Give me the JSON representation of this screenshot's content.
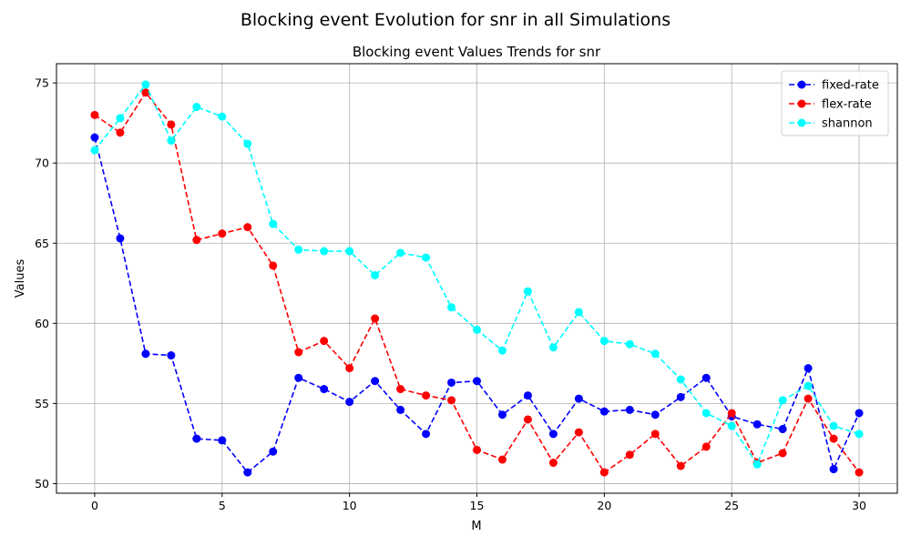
{
  "figure": {
    "suptitle": "Blocking event Evolution for snr in all Simulations"
  },
  "chart_data": {
    "type": "line",
    "title": "Blocking event Values Trends for snr",
    "xlabel": "M",
    "ylabel": "Values",
    "xlim": [
      -1.5,
      31.5
    ],
    "ylim": [
      49.4,
      76.2
    ],
    "xticks": [
      0,
      5,
      10,
      15,
      20,
      25,
      30
    ],
    "yticks": [
      50,
      55,
      60,
      65,
      70,
      75
    ],
    "grid": true,
    "legend_position": "top-right",
    "x": [
      0,
      1,
      2,
      3,
      4,
      5,
      6,
      7,
      8,
      9,
      10,
      11,
      12,
      13,
      14,
      15,
      16,
      17,
      18,
      19,
      20,
      21,
      22,
      23,
      24,
      25,
      26,
      27,
      28,
      29,
      30
    ],
    "series": [
      {
        "name": "fixed-rate",
        "color": "#0000ff",
        "values": [
          71.6,
          65.3,
          58.1,
          58.0,
          52.8,
          52.7,
          50.7,
          52.0,
          56.6,
          55.9,
          55.1,
          56.4,
          54.6,
          53.1,
          56.3,
          56.4,
          54.3,
          55.5,
          53.1,
          55.3,
          54.5,
          54.6,
          54.3,
          55.4,
          56.6,
          54.2,
          53.7,
          53.4,
          57.2,
          50.9,
          54.4
        ]
      },
      {
        "name": "flex-rate",
        "color": "#ff0000",
        "values": [
          73.0,
          71.9,
          74.4,
          72.4,
          65.2,
          65.6,
          66.0,
          63.6,
          58.2,
          58.9,
          57.2,
          60.3,
          55.9,
          55.5,
          55.2,
          52.1,
          51.5,
          54.0,
          51.3,
          53.2,
          50.7,
          51.8,
          53.1,
          51.1,
          52.3,
          54.4,
          51.3,
          51.9,
          55.3,
          52.8,
          50.7
        ]
      },
      {
        "name": "shannon",
        "color": "#00ffff",
        "values": [
          70.8,
          72.8,
          74.9,
          71.4,
          73.5,
          72.9,
          71.2,
          66.2,
          64.6,
          64.5,
          64.5,
          63.0,
          64.4,
          64.1,
          61.0,
          59.6,
          58.3,
          62.0,
          58.5,
          60.7,
          58.9,
          58.7,
          58.1,
          56.5,
          54.4,
          53.6,
          51.2,
          55.2,
          56.1,
          53.6,
          53.1
        ]
      }
    ]
  }
}
